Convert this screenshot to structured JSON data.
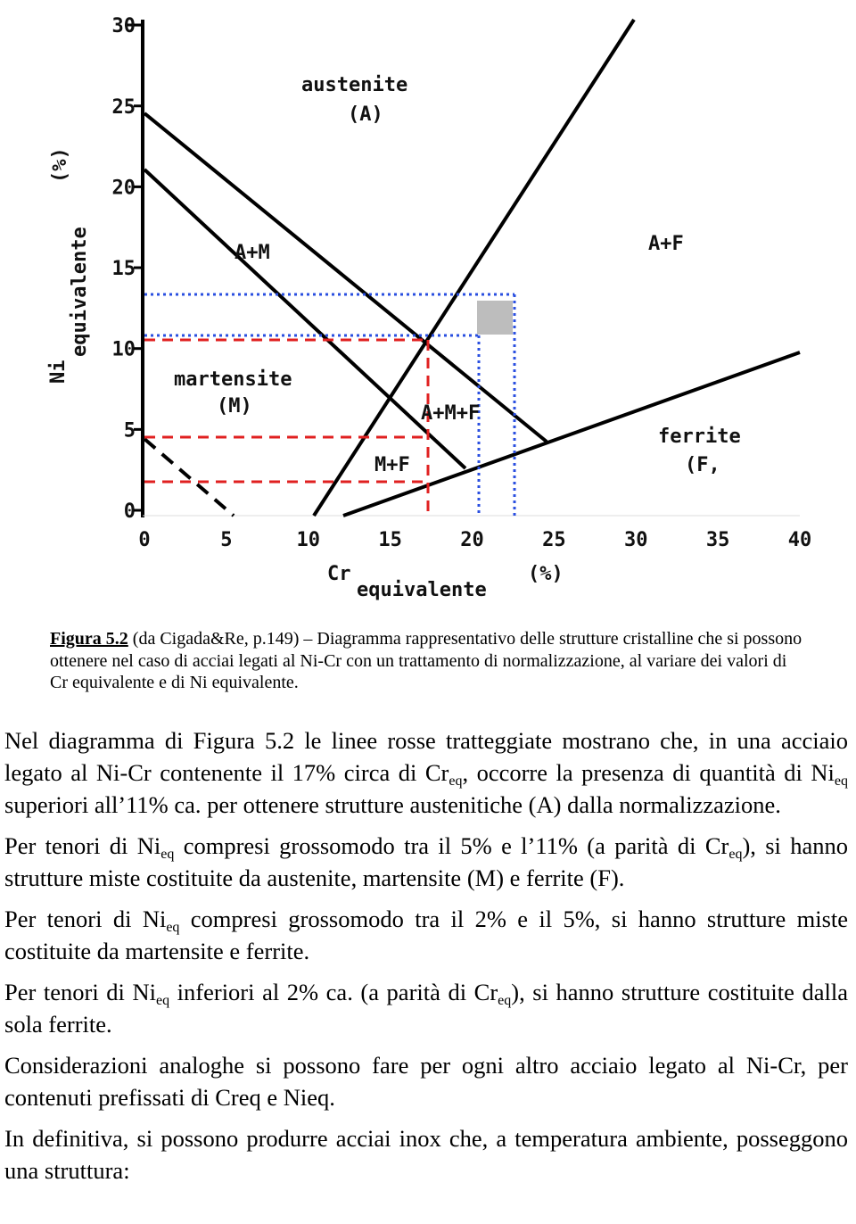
{
  "figure": {
    "yticks": [
      0,
      5,
      10,
      15,
      20,
      25,
      30
    ],
    "xticks": [
      0,
      5,
      10,
      15,
      20,
      25,
      30,
      35,
      40
    ],
    "y_label": [
      "Ni",
      "equivalente",
      "(%)"
    ],
    "x_label": [
      "Cr",
      "equivalente",
      "(%)"
    ],
    "regions": [
      "austenite",
      "(A)",
      "A+M",
      "martensite",
      "(M)",
      "A+M+F",
      "M+F",
      "A+F",
      "ferrite",
      "(F,"
    ]
  },
  "caption": {
    "label": "Figura 5.2",
    "text": " (da Cigada&Re, p.149) – Diagramma rappresentativo delle strutture cristalline che si possono ottenere nel caso di acciai legati al Ni-Cr con un trattamento di normalizzazione, al variare dei valori di Cr equivalente e di Ni equivalente."
  },
  "paragraphs": [
    [
      "Nel diagramma di Figura 5.2 le linee rosse tratteggiate mostrano che, in una acciaio legato al Ni-Cr contenente il 17% circa di Cr",
      {
        "sub": "eq"
      },
      ", occorre la presenza di quantità di Ni",
      {
        "sub": "eq"
      },
      " superiori all’11% ca. per ottenere strutture austenitiche (A) dalla normalizzazione."
    ],
    [
      "Per tenori di Ni",
      {
        "sub": "eq"
      },
      " compresi grossomodo tra il 5% e l’11% (a parità di Cr",
      {
        "sub": "eq"
      },
      "), si hanno strutture miste costituite da austenite, martensite (M) e ferrite (F)."
    ],
    [
      "Per tenori di Ni",
      {
        "sub": "eq"
      },
      " compresi grossomodo tra il 2% e il 5%, si hanno strutture miste costituite da martensite e ferrite."
    ],
    [
      "Per tenori di Ni",
      {
        "sub": "eq"
      },
      " inferiori al 2% ca. (a parità di Cr",
      {
        "sub": "eq"
      },
      "), si hanno strutture costituite dalla sola ferrite."
    ],
    [
      "Considerazioni analoghe si possono fare per ogni altro acciaio legato al Ni-Cr, per contenuti prefissati di Creq e Nieq."
    ],
    [
      "In definitiva, si possono produrre acciai inox che, a temperatura ambiente, posseggono una struttura:"
    ]
  ]
}
